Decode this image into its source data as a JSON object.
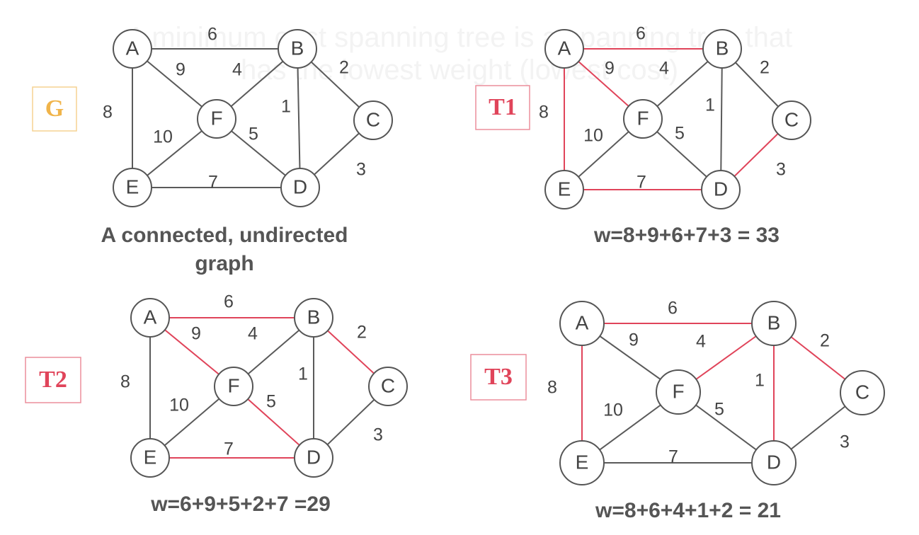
{
  "background_text": {
    "line1": "A minimum cost spanning tree is a spanning tree that",
    "line2": "has the lowest weight (lowest cost)"
  },
  "colors": {
    "edge_default": "#5a5a5a",
    "edge_selected": "#e0445a",
    "g_tag": "#f0b44a",
    "t_tag": "#e0445a",
    "node_stroke": "#555555",
    "text": "#444444"
  },
  "graphs": [
    {
      "id": "G",
      "tag": "G",
      "tag_color_key": "g_tag",
      "caption_lines": [
        "A connected, undirected",
        "graph"
      ],
      "edges": [
        {
          "from": "A",
          "to": "B",
          "weight": "6",
          "selected": false
        },
        {
          "from": "A",
          "to": "F",
          "weight": "9",
          "selected": false
        },
        {
          "from": "A",
          "to": "E",
          "weight": "8",
          "selected": false
        },
        {
          "from": "B",
          "to": "F",
          "weight": "4",
          "selected": false
        },
        {
          "from": "B",
          "to": "D",
          "weight": "1",
          "selected": false
        },
        {
          "from": "B",
          "to": "C",
          "weight": "2",
          "selected": false
        },
        {
          "from": "F",
          "to": "E",
          "weight": "10",
          "selected": false
        },
        {
          "from": "F",
          "to": "D",
          "weight": "5",
          "selected": false
        },
        {
          "from": "E",
          "to": "D",
          "weight": "7",
          "selected": false
        },
        {
          "from": "C",
          "to": "D",
          "weight": "3",
          "selected": false
        }
      ]
    },
    {
      "id": "T1",
      "tag": "T1",
      "tag_color_key": "t_tag",
      "caption_lines": [
        "w=8+9+6+7+3 = 33"
      ],
      "edges": [
        {
          "from": "A",
          "to": "B",
          "weight": "6",
          "selected": true
        },
        {
          "from": "A",
          "to": "F",
          "weight": "9",
          "selected": true
        },
        {
          "from": "A",
          "to": "E",
          "weight": "8",
          "selected": true
        },
        {
          "from": "B",
          "to": "F",
          "weight": "4",
          "selected": false
        },
        {
          "from": "B",
          "to": "D",
          "weight": "1",
          "selected": false
        },
        {
          "from": "B",
          "to": "C",
          "weight": "2",
          "selected": false
        },
        {
          "from": "F",
          "to": "E",
          "weight": "10",
          "selected": false
        },
        {
          "from": "F",
          "to": "D",
          "weight": "5",
          "selected": false
        },
        {
          "from": "E",
          "to": "D",
          "weight": "7",
          "selected": true
        },
        {
          "from": "C",
          "to": "D",
          "weight": "3",
          "selected": true
        }
      ]
    },
    {
      "id": "T2",
      "tag": "T2",
      "tag_color_key": "t_tag",
      "caption_lines": [
        "w=6+9+5+2+7 =29"
      ],
      "edges": [
        {
          "from": "A",
          "to": "B",
          "weight": "6",
          "selected": true
        },
        {
          "from": "A",
          "to": "F",
          "weight": "9",
          "selected": true
        },
        {
          "from": "A",
          "to": "E",
          "weight": "8",
          "selected": false
        },
        {
          "from": "B",
          "to": "F",
          "weight": "4",
          "selected": false
        },
        {
          "from": "B",
          "to": "D",
          "weight": "1",
          "selected": false
        },
        {
          "from": "B",
          "to": "C",
          "weight": "2",
          "selected": true
        },
        {
          "from": "F",
          "to": "E",
          "weight": "10",
          "selected": false
        },
        {
          "from": "F",
          "to": "D",
          "weight": "5",
          "selected": true
        },
        {
          "from": "E",
          "to": "D",
          "weight": "7",
          "selected": true
        },
        {
          "from": "C",
          "to": "D",
          "weight": "3",
          "selected": false
        }
      ]
    },
    {
      "id": "T3",
      "tag": "T3",
      "tag_color_key": "t_tag",
      "caption_lines": [
        "w=8+6+4+1+2 = 21"
      ],
      "edges": [
        {
          "from": "A",
          "to": "B",
          "weight": "6",
          "selected": true
        },
        {
          "from": "A",
          "to": "F",
          "weight": "9",
          "selected": false
        },
        {
          "from": "A",
          "to": "E",
          "weight": "8",
          "selected": true
        },
        {
          "from": "B",
          "to": "F",
          "weight": "4",
          "selected": true
        },
        {
          "from": "B",
          "to": "D",
          "weight": "1",
          "selected": true
        },
        {
          "from": "B",
          "to": "C",
          "weight": "2",
          "selected": true
        },
        {
          "from": "F",
          "to": "E",
          "weight": "10",
          "selected": false
        },
        {
          "from": "F",
          "to": "D",
          "weight": "5",
          "selected": false
        },
        {
          "from": "E",
          "to": "D",
          "weight": "7",
          "selected": false
        },
        {
          "from": "C",
          "to": "D",
          "weight": "3",
          "selected": false
        }
      ]
    }
  ]
}
